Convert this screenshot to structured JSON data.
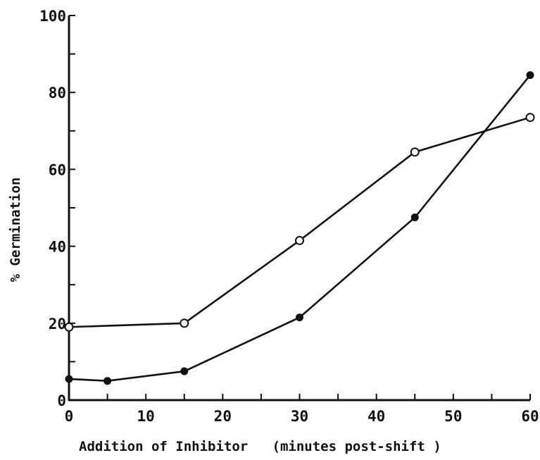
{
  "chart_data": {
    "type": "line",
    "title": "",
    "xlabel": "Addition of Inhibitor   (minutes post-shift )",
    "ylabel": "% Germination",
    "xlim": [
      0,
      60
    ],
    "ylim": [
      0,
      100
    ],
    "x_ticks": [
      0,
      10,
      20,
      30,
      40,
      50,
      60
    ],
    "y_ticks": [
      0,
      20,
      40,
      60,
      80,
      100
    ],
    "grid": false,
    "legend": "none",
    "series": [
      {
        "marker": "open-circle",
        "color": "#111111",
        "x": [
          0,
          15,
          30,
          45,
          60
        ],
        "y": [
          19,
          20,
          41.5,
          64.5,
          73.5
        ]
      },
      {
        "marker": "filled-circle",
        "color": "#111111",
        "x": [
          0,
          5,
          15,
          30,
          45,
          60
        ],
        "y": [
          5.5,
          5,
          7.5,
          21.5,
          47.5,
          84.5
        ]
      }
    ]
  }
}
